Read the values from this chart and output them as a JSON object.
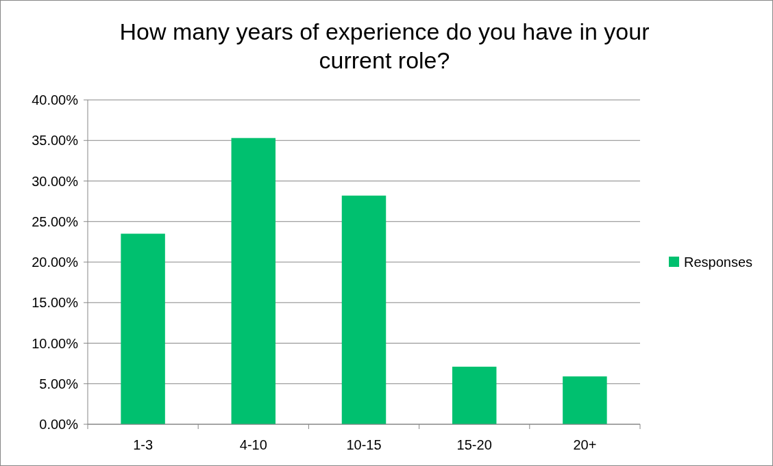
{
  "chart_data": {
    "type": "bar",
    "title": "How many years of experience do you have in your current role?",
    "categories": [
      "1-3",
      "4-10",
      "10-15",
      "15-20",
      "20+"
    ],
    "series": [
      {
        "name": "Responses",
        "color": "#00c06f",
        "values": [
          23.5,
          35.3,
          28.2,
          7.1,
          5.9
        ]
      }
    ],
    "ylim": [
      0,
      40
    ],
    "yticks": [
      {
        "value": 0,
        "label": "0.00%"
      },
      {
        "value": 5,
        "label": "5.00%"
      },
      {
        "value": 10,
        "label": "10.00%"
      },
      {
        "value": 15,
        "label": "15.00%"
      },
      {
        "value": 20,
        "label": "20.00%"
      },
      {
        "value": 25,
        "label": "25.00%"
      },
      {
        "value": 30,
        "label": "30.00%"
      },
      {
        "value": 35,
        "label": "35.00%"
      },
      {
        "value": 40,
        "label": "40.00%"
      }
    ],
    "grid": "y",
    "legend": "right"
  }
}
